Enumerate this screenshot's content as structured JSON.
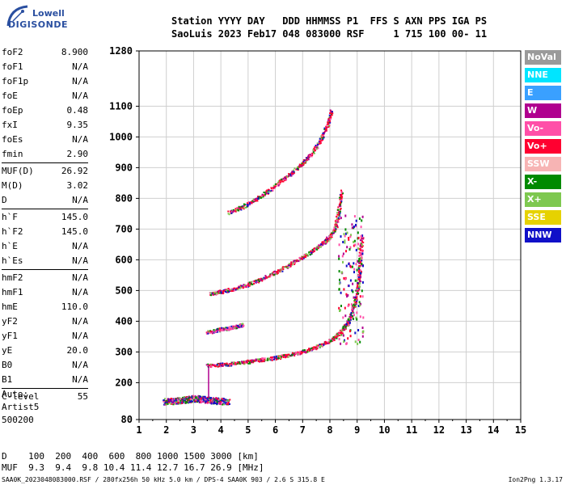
{
  "logo": {
    "line1": "Lowell",
    "line2": "DIGISONDE"
  },
  "header": {
    "row1": "Station YYYY DAY   DDD HHMMSS P1  FFS S AXN PPS IGA PS",
    "row2": "SaoLuis 2023 Feb17 048 083000 RSF     1 715 100 00- 11"
  },
  "params": {
    "group1": [
      {
        "name": "foF2",
        "value": "8.900"
      },
      {
        "name": "foF1",
        "value": "N/A"
      },
      {
        "name": "foF1p",
        "value": "N/A"
      },
      {
        "name": "foE",
        "value": "N/A"
      },
      {
        "name": "foEp",
        "value": "0.48"
      },
      {
        "name": "fxI",
        "value": "9.35"
      },
      {
        "name": "foEs",
        "value": "N/A"
      },
      {
        "name": "fmin",
        "value": "2.90"
      }
    ],
    "group2": [
      {
        "name": "MUF(D)",
        "value": "26.92"
      },
      {
        "name": "M(D)",
        "value": "3.02"
      },
      {
        "name": "D",
        "value": "N/A"
      }
    ],
    "group3": [
      {
        "name": "h`F",
        "value": "145.0"
      },
      {
        "name": "h`F2",
        "value": "145.0"
      },
      {
        "name": "h`E",
        "value": "N/A"
      },
      {
        "name": "h`Es",
        "value": "N/A"
      }
    ],
    "group4": [
      {
        "name": "hmF2",
        "value": "N/A"
      },
      {
        "name": "hmF1",
        "value": "N/A"
      },
      {
        "name": "hmE",
        "value": "110.0"
      },
      {
        "name": "yF2",
        "value": "N/A"
      },
      {
        "name": "yF1",
        "value": "N/A"
      },
      {
        "name": "yE",
        "value": "20.0"
      },
      {
        "name": "B0",
        "value": "N/A"
      },
      {
        "name": "B1",
        "value": "N/A"
      }
    ],
    "group5": [
      {
        "name": "C-level",
        "value": "55"
      }
    ]
  },
  "auto": {
    "line1": "Auto:",
    "line2": "Artist5",
    "line3": "500200"
  },
  "legend": [
    {
      "label": "NoVal",
      "color": "#9a9a9a"
    },
    {
      "label": "NNE",
      "color": "#00e5ff"
    },
    {
      "label": "E",
      "color": "#3aa0ff"
    },
    {
      "label": "W",
      "color": "#b0008f"
    },
    {
      "label": "Vo-",
      "color": "#ff4fa8"
    },
    {
      "label": "Vo+",
      "color": "#ff0030"
    },
    {
      "label": "SSW",
      "color": "#f7b4b4"
    },
    {
      "label": "X-",
      "color": "#008a00"
    },
    {
      "label": "X+",
      "color": "#7ec850"
    },
    {
      "label": "SSE",
      "color": "#e6d200"
    },
    {
      "label": "NNW",
      "color": "#1010c8"
    }
  ],
  "chart_data": {
    "type": "scatter",
    "xlim": [
      1,
      15
    ],
    "ylim": [
      80,
      1280
    ],
    "xticks": [
      "1",
      "2",
      "3",
      "4",
      "5",
      "6",
      "7",
      "8",
      "9",
      "10",
      "11",
      "12",
      "13",
      "14",
      "15"
    ],
    "yticks": [
      {
        "value": 80,
        "label": "80"
      },
      {
        "value": 200,
        "label": "200"
      },
      {
        "value": 300,
        "label": "300"
      },
      {
        "value": 400,
        "label": "400"
      },
      {
        "value": 500,
        "label": "500"
      },
      {
        "value": 600,
        "label": "600"
      },
      {
        "value": 700,
        "label": "700"
      },
      {
        "value": 800,
        "label": "800"
      },
      {
        "value": 900,
        "label": "900"
      },
      {
        "value": 1000,
        "label": "1000"
      },
      {
        "value": 1100,
        "label": "1100"
      },
      {
        "value": 1280,
        "label": "1280"
      }
    ],
    "grid": true,
    "traces": [
      {
        "name": "F trace 1",
        "color": "#ff0030",
        "points": [
          [
            3.5,
            258
          ],
          [
            4,
            260
          ],
          [
            4.5,
            264
          ],
          [
            5,
            270
          ],
          [
            5.5,
            276
          ],
          [
            6,
            283
          ],
          [
            6.5,
            292
          ],
          [
            7,
            303
          ],
          [
            7.5,
            318
          ],
          [
            8,
            338
          ],
          [
            8.3,
            358
          ],
          [
            8.6,
            390
          ],
          [
            8.8,
            430
          ],
          [
            8.95,
            480
          ],
          [
            9.05,
            540
          ],
          [
            9.1,
            600
          ],
          [
            9.15,
            680
          ]
        ]
      },
      {
        "name": "F trace 2",
        "color": "#ff0030",
        "points": [
          [
            3.6,
            490
          ],
          [
            4,
            498
          ],
          [
            4.5,
            508
          ],
          [
            5,
            522
          ],
          [
            5.5,
            540
          ],
          [
            6,
            560
          ],
          [
            6.5,
            585
          ],
          [
            7,
            612
          ],
          [
            7.5,
            640
          ],
          [
            7.8,
            660
          ],
          [
            8,
            680
          ],
          [
            8.2,
            710
          ],
          [
            8.3,
            760
          ],
          [
            8.4,
            830
          ]
        ]
      },
      {
        "name": "F trace 3",
        "color": "#ff0030",
        "points": [
          [
            4.3,
            755
          ],
          [
            4.8,
            775
          ],
          [
            5.3,
            800
          ],
          [
            5.8,
            830
          ],
          [
            6.3,
            865
          ],
          [
            6.8,
            900
          ],
          [
            7.2,
            935
          ],
          [
            7.6,
            985
          ],
          [
            7.9,
            1040
          ],
          [
            8.05,
            1090
          ]
        ]
      },
      {
        "name": "E layer",
        "color": "#1010c8",
        "points": [
          [
            1.9,
            140
          ],
          [
            2.3,
            142
          ],
          [
            2.7,
            146
          ],
          [
            3,
            150
          ],
          [
            3.3,
            148
          ],
          [
            3.6,
            145
          ],
          [
            3.9,
            142
          ],
          [
            4.3,
            140
          ]
        ]
      },
      {
        "name": "low trace 2",
        "color": "#ff4fa8",
        "points": [
          [
            3.5,
            365
          ],
          [
            3.8,
            372
          ],
          [
            4.2,
            378
          ],
          [
            4.6,
            385
          ],
          [
            4.8,
            390
          ]
        ]
      }
    ]
  },
  "bottom": {
    "row1": "D    100  200  400  600  800 1000 1500 3000 [km]",
    "row2": "MUF  9.3  9.4  9.8 10.4 11.4 12.7 16.7 26.9 [MHz]"
  },
  "footer": {
    "left": "SAA0K_2023048083000.RSF / 280fx256h 50 kHz 5.0 km / DPS-4 SAA0K 903 / 2.6 S 315.8 E",
    "right": "Ion2Png 1.3.17"
  }
}
